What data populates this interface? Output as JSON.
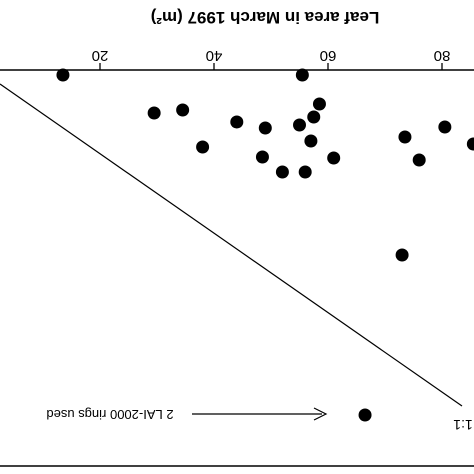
{
  "chart_data": {
    "type": "scatter",
    "title": "",
    "xlabel": "Leaf area in March 1997 (m²)",
    "ylabel": "",
    "xlim": [
      5,
      88
    ],
    "x_ticks": [
      20,
      40,
      60,
      80
    ],
    "x_tick_labels": [
      "20",
      "40",
      "60",
      "80"
    ],
    "grid": false,
    "reference_line_label": "1:1",
    "annotation": "2 LAI-2000 rings used",
    "points": [
      {
        "x": 13.5,
        "y": 75
      },
      {
        "x": 55.5,
        "y": 75
      },
      {
        "x": 29.5,
        "y": 113
      },
      {
        "x": 34.5,
        "y": 110
      },
      {
        "x": 58.5,
        "y": 104
      },
      {
        "x": 44,
        "y": 122
      },
      {
        "x": 49,
        "y": 128
      },
      {
        "x": 55,
        "y": 125
      },
      {
        "x": 57.5,
        "y": 117
      },
      {
        "x": 38,
        "y": 147
      },
      {
        "x": 57,
        "y": 141
      },
      {
        "x": 48.5,
        "y": 157
      },
      {
        "x": 61,
        "y": 158
      },
      {
        "x": 52,
        "y": 172
      },
      {
        "x": 56,
        "y": 172
      },
      {
        "x": 73.5,
        "y": 137
      },
      {
        "x": 80.5,
        "y": 127
      },
      {
        "x": 85.5,
        "y": 144
      },
      {
        "x": 76,
        "y": 160
      },
      {
        "x": 73,
        "y": 255
      },
      {
        "x": 66.5,
        "y": 415
      }
    ]
  }
}
